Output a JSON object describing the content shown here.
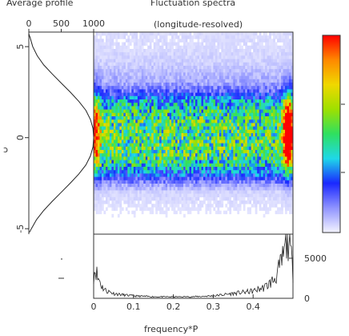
{
  "chart_data": [
    {
      "panel": "average-profile",
      "type": "line",
      "title": "Average profile",
      "x_ticks": [
        "0",
        "500",
        "1000"
      ],
      "x_tick_values": [
        0,
        500,
        1000
      ],
      "xlim": [
        0,
        1000
      ],
      "y_ticks": [
        "5",
        "0",
        "-5"
      ],
      "y_tick_values": [
        5,
        0,
        -5
      ],
      "ylim": [
        -5.3,
        5.8
      ],
      "series": [
        {
          "y": [
            5.7,
            5.5,
            5.0,
            4.5,
            4.0,
            3.5,
            3.0,
            2.5,
            2.0,
            1.5,
            1.0,
            0.5,
            0.0,
            -0.5,
            -1.0,
            -1.5,
            -2.0,
            -2.5,
            -3.0,
            -3.5,
            -4.0,
            -4.5,
            -5.0,
            -5.2
          ],
          "values": [
            0,
            20,
            60,
            130,
            230,
            360,
            500,
            640,
            770,
            880,
            950,
            990,
            1000,
            990,
            950,
            880,
            770,
            640,
            500,
            360,
            230,
            120,
            40,
            10
          ]
        }
      ]
    },
    {
      "panel": "fluctuation-spectra",
      "type": "heatmap",
      "title": "Fluctuation spectra",
      "subtitle": "(longitude-resolved)",
      "xlim": [
        0,
        0.5
      ],
      "ylim": [
        -5.3,
        5.8
      ],
      "colormap": [
        "#f4f4ff",
        "#8f93ff",
        "#1a28ff",
        "#1fd8e8",
        "#2fe060",
        "#9ee000",
        "#f0d800",
        "#ff8800",
        "#ff0000"
      ],
      "colorbar_max": 1.0,
      "y_band_intensity": {
        "y": [
          -3.0,
          -2.5,
          -2.0,
          -1.5,
          -1.0,
          0.0,
          1.0,
          1.5,
          2.0,
          2.5,
          3.0,
          4.0,
          5.0
        ],
        "intensity": [
          0.04,
          0.12,
          0.28,
          0.42,
          0.5,
          0.52,
          0.5,
          0.44,
          0.36,
          0.18,
          0.1,
          0.05,
          0.03
        ]
      },
      "edge_peaks": [
        {
          "x": 0.005,
          "y": 0.3,
          "strength": 0.55
        },
        {
          "x": 0.488,
          "y": 0.3,
          "strength": 0.95
        }
      ]
    },
    {
      "panel": "integrated-spectrum",
      "type": "line",
      "xlabel": "frequency*P",
      "x_ticks": [
        "0",
        "0.1",
        "0.2",
        "0.3",
        "0.4"
      ],
      "x_tick_values": [
        0,
        0.1,
        0.2,
        0.3,
        0.4
      ],
      "xlim": [
        0,
        0.5
      ],
      "y_ticks": [
        "5000",
        "0"
      ],
      "y_tick_values": [
        5000,
        0
      ],
      "ylim": [
        0,
        8000
      ],
      "series": [
        {
          "x": [
            0.0,
            0.005,
            0.01,
            0.015,
            0.02,
            0.03,
            0.04,
            0.05,
            0.07,
            0.1,
            0.15,
            0.2,
            0.25,
            0.3,
            0.35,
            0.4,
            0.43,
            0.45,
            0.46,
            0.47,
            0.48,
            0.485,
            0.49,
            0.495,
            0.5
          ],
          "values": [
            3000,
            3900,
            2500,
            2300,
            1500,
            1000,
            800,
            600,
            450,
            300,
            200,
            180,
            200,
            300,
            600,
            900,
            1400,
            2200,
            3000,
            4200,
            6000,
            7200,
            7800,
            5200,
            3200
          ]
        }
      ]
    }
  ]
}
